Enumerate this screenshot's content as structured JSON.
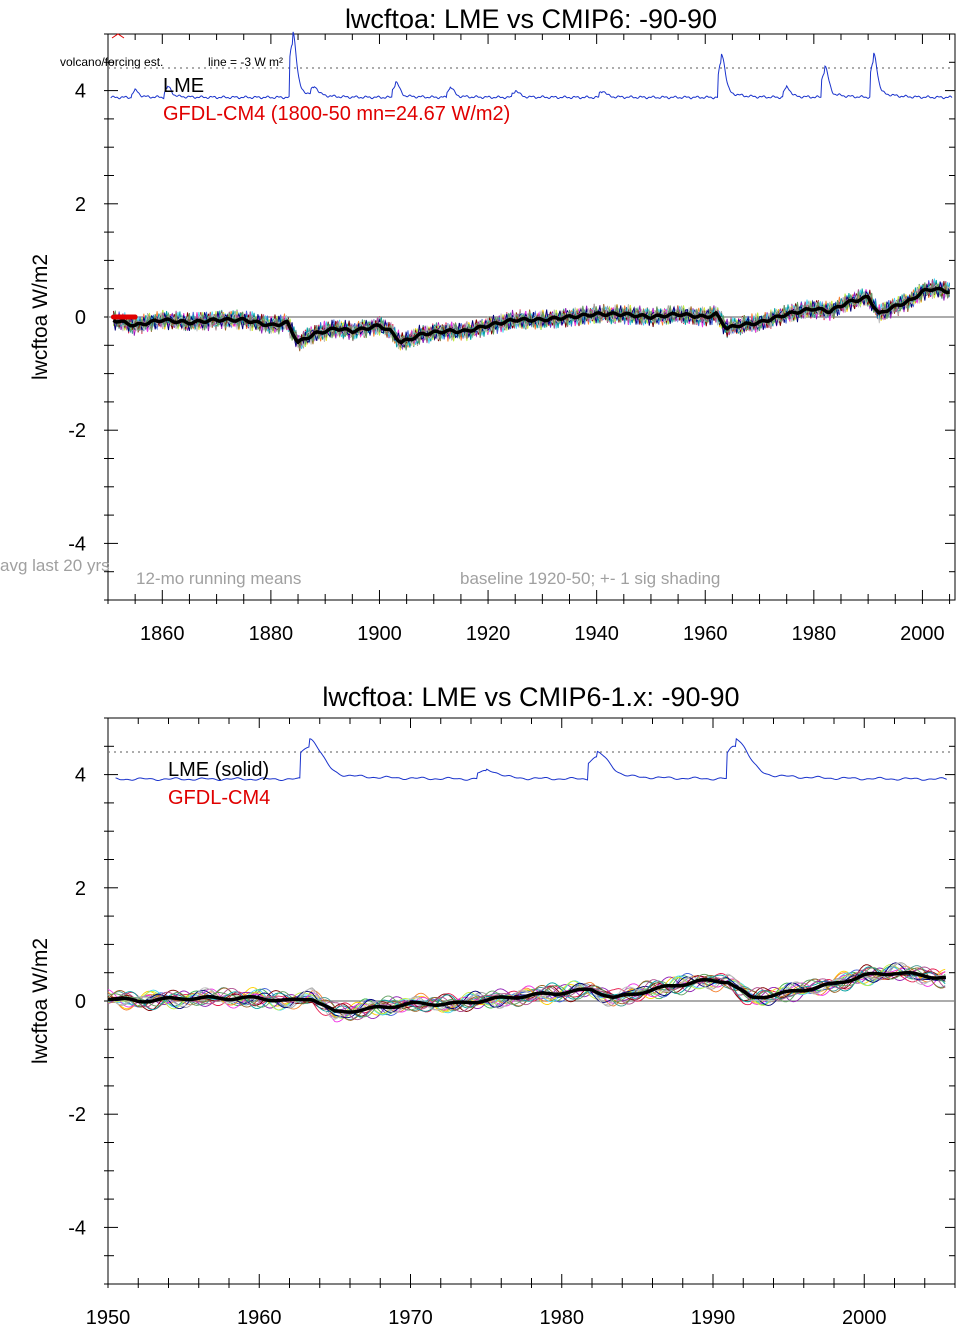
{
  "chart_data": [
    {
      "type": "line",
      "title": "lwcftoa: LME vs CMIP6: -90-90",
      "ylabel": "lwcftoa W/m2",
      "xlim": [
        1850,
        2006
      ],
      "ylim": [
        -5,
        5
      ],
      "xticks": [
        1860,
        1880,
        1900,
        1920,
        1940,
        1960,
        1980,
        2000
      ],
      "yticks": [
        -4,
        -2,
        0,
        2,
        4
      ],
      "grid": false,
      "annotations": {
        "volcano_label": "volcano/forcing est.",
        "line_label": "line = -3 W m²",
        "avg_label": "avg last 20 yrs",
        "running_means": "12-mo running means",
        "baseline": "baseline 1920-50; +- 1 sig shading"
      },
      "legend": {
        "lme": "LME",
        "gfdl": "GFDL-CM4 (1800-50 mn=24.67 W/m2)"
      },
      "colors": {
        "volcano": "#1a33cc",
        "lme_mean": "#000000",
        "gfdl": "#e00000",
        "zero": "#7a7a7a",
        "dotted": "#7a7a7a"
      },
      "dotted_line_y": 4.4,
      "volcano": {
        "baseline": 3.88,
        "peaks": [
          [
            1855,
            0.1
          ],
          [
            1861,
            0.15
          ],
          [
            1884,
            0.95
          ],
          [
            1888,
            0.12
          ],
          [
            1903,
            0.22
          ],
          [
            1913,
            0.15
          ],
          [
            1925,
            0.1
          ],
          [
            1941,
            0.1
          ],
          [
            1963,
            0.62
          ],
          [
            1975,
            0.15
          ],
          [
            1982,
            0.45
          ],
          [
            1991,
            0.62
          ]
        ]
      },
      "lme_mean": {
        "x": [
          1851,
          1855,
          1860,
          1865,
          1870,
          1875,
          1880,
          1883,
          1885,
          1888,
          1892,
          1895,
          1900,
          1902,
          1904,
          1908,
          1912,
          1916,
          1920,
          1925,
          1930,
          1935,
          1940,
          1945,
          1950,
          1955,
          1960,
          1962,
          1964,
          1966,
          1970,
          1975,
          1980,
          1983,
          1986,
          1990,
          1992,
          1994,
          1998,
          2000,
          2002,
          2005
        ],
        "y": [
          -0.05,
          -0.15,
          -0.05,
          -0.1,
          -0.05,
          -0.05,
          -0.15,
          -0.1,
          -0.45,
          -0.3,
          -0.2,
          -0.25,
          -0.15,
          -0.25,
          -0.45,
          -0.3,
          -0.25,
          -0.25,
          -0.15,
          -0.05,
          -0.05,
          0.0,
          0.05,
          0.05,
          0.0,
          0.05,
          0.0,
          0.05,
          -0.2,
          -0.15,
          -0.1,
          0.05,
          0.15,
          0.1,
          0.25,
          0.35,
          0.05,
          0.15,
          0.3,
          0.45,
          0.5,
          0.45
        ]
      },
      "gfdl": {
        "x": [
          1851,
          1855
        ],
        "y": [
          0.0,
          0.0
        ]
      }
    },
    {
      "type": "line",
      "title": "lwcftoa: LME vs CMIP6-1.x: -90-90",
      "ylabel": "lwcftoa W/m2",
      "xlim": [
        1950,
        2006
      ],
      "ylim": [
        -5,
        5
      ],
      "xticks": [
        1950,
        1960,
        1970,
        1980,
        1990,
        2000
      ],
      "yticks": [
        -4,
        -2,
        0,
        2,
        4
      ],
      "grid": false,
      "legend": {
        "lme": "LME (solid)",
        "gfdl": "GFDL-CM4"
      },
      "colors": {
        "volcano": "#1a33cc",
        "lme_mean": "#000000",
        "gfdl": "#e00000",
        "zero": "#7a7a7a",
        "dotted": "#7a7a7a"
      },
      "dotted_line_y": 4.4,
      "volcano": {
        "baseline": 3.92,
        "peaks": [
          [
            1963.3,
            0.58
          ],
          [
            1975,
            0.13
          ],
          [
            1982.3,
            0.38
          ],
          [
            1991.5,
            0.58
          ]
        ]
      },
      "lme_mean": {
        "x": [
          1950,
          1952,
          1955,
          1958,
          1960,
          1962,
          1963.5,
          1965,
          1967,
          1970,
          1973,
          1976,
          1980,
          1982,
          1983.5,
          1986,
          1989,
          1991,
          1992.5,
          1995,
          1998,
          2000,
          2002,
          2004,
          2005.5
        ],
        "y": [
          0.05,
          0.0,
          0.05,
          0.05,
          0.05,
          0.0,
          0.05,
          -0.2,
          -0.15,
          -0.05,
          -0.05,
          0.05,
          0.15,
          0.2,
          0.05,
          0.2,
          0.35,
          0.35,
          0.05,
          0.15,
          0.3,
          0.45,
          0.5,
          0.45,
          0.4
        ]
      }
    }
  ]
}
